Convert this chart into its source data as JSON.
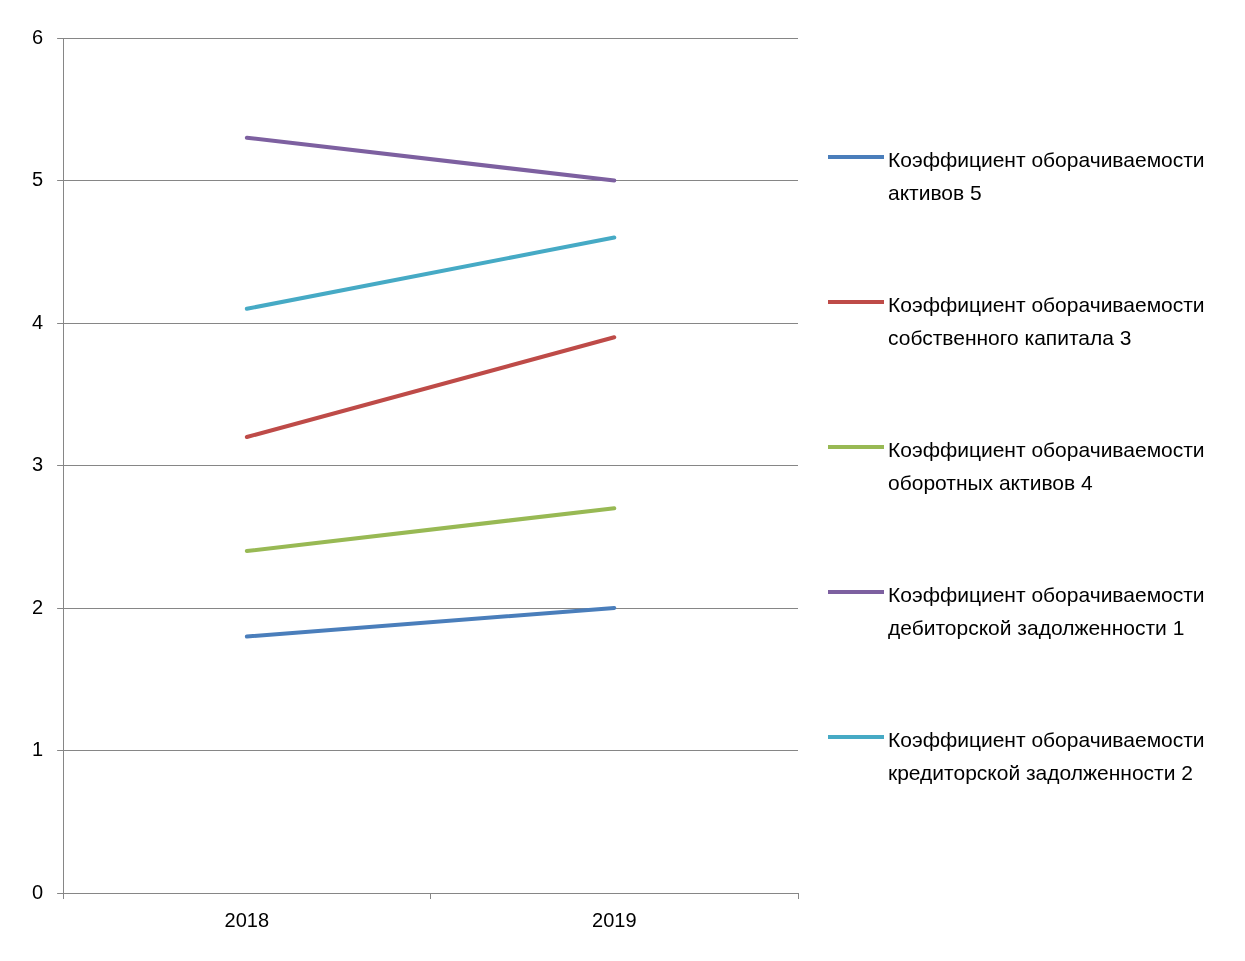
{
  "chart_data": {
    "type": "line",
    "categories": [
      "2018",
      "2019"
    ],
    "ylim": [
      0,
      6
    ],
    "yticks": [
      0,
      1,
      2,
      3,
      4,
      5,
      6
    ],
    "grid": "y",
    "legend": "right",
    "marker": "none",
    "line_style": "solid",
    "series": [
      {
        "name": "Коэффициент оборачиваемости активов 5",
        "color": "#4a7ebb",
        "values": [
          1.8,
          2.0
        ]
      },
      {
        "name": "Коэффициент оборачиваемости собственного капитала 3",
        "color": "#be4b48",
        "values": [
          3.2,
          3.9
        ]
      },
      {
        "name": "Коэффициент оборачиваемости оборотных активов 4",
        "color": "#98b954",
        "values": [
          2.4,
          2.7
        ]
      },
      {
        "name": "Коэффициент оборачиваемости дебиторской задолженности 1",
        "color": "#7d60a0",
        "values": [
          5.3,
          5.0
        ]
      },
      {
        "name": "Коэффициент оборачиваемости кредиторской задолженности 2",
        "color": "#46aac5",
        "values": [
          4.1,
          4.6
        ]
      }
    ]
  }
}
